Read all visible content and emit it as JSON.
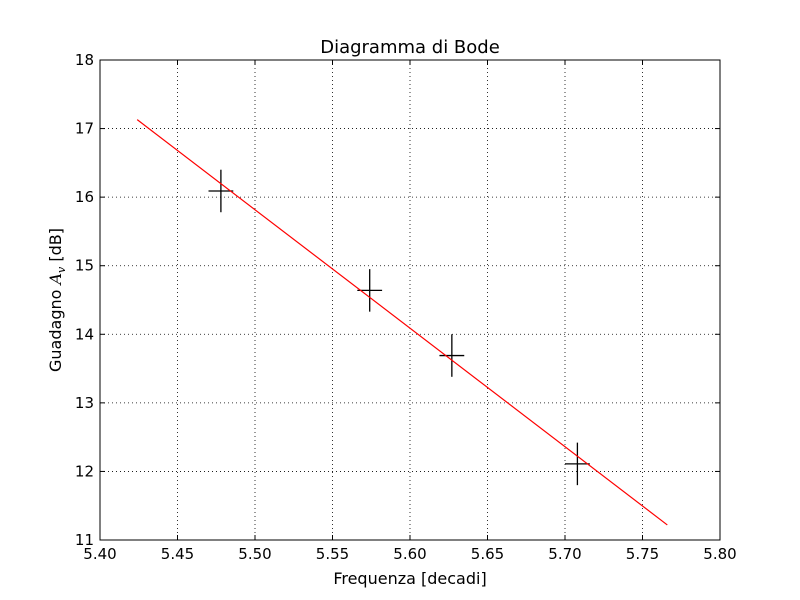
{
  "chart_data": {
    "type": "scatter",
    "title": "Diagramma di Bode",
    "xlabel": "Frequenza [decadi]",
    "ylabel_prefix": "Guadagno ",
    "ylabel_symbol": "A",
    "ylabel_subscript": "v",
    "ylabel_suffix": " [dB]",
    "xlim": [
      5.4,
      5.8
    ],
    "ylim": [
      11,
      18
    ],
    "x_ticks": [
      5.4,
      5.45,
      5.5,
      5.55,
      5.6,
      5.65,
      5.7,
      5.75,
      5.8
    ],
    "x_tick_labels": [
      "5.40",
      "5.45",
      "5.50",
      "5.55",
      "5.60",
      "5.65",
      "5.70",
      "5.75",
      "5.80"
    ],
    "y_ticks": [
      11,
      12,
      13,
      14,
      15,
      16,
      17,
      18
    ],
    "y_tick_labels": [
      "11",
      "12",
      "13",
      "14",
      "15",
      "16",
      "17",
      "18"
    ],
    "grid": true,
    "series": [
      {
        "kind": "errorbar",
        "color": "#000000",
        "x": [
          5.478,
          5.574,
          5.627,
          5.708
        ],
        "y": [
          16.09,
          14.64,
          13.69,
          12.11
        ],
        "y_err": [
          0.31,
          0.31,
          0.31,
          0.31
        ],
        "x_err": [
          0.008,
          0.008,
          0.008,
          0.008
        ]
      },
      {
        "kind": "fit-line",
        "color": "#ff0000",
        "x": [
          5.424,
          5.766
        ],
        "y": [
          17.13,
          11.22
        ]
      }
    ]
  }
}
